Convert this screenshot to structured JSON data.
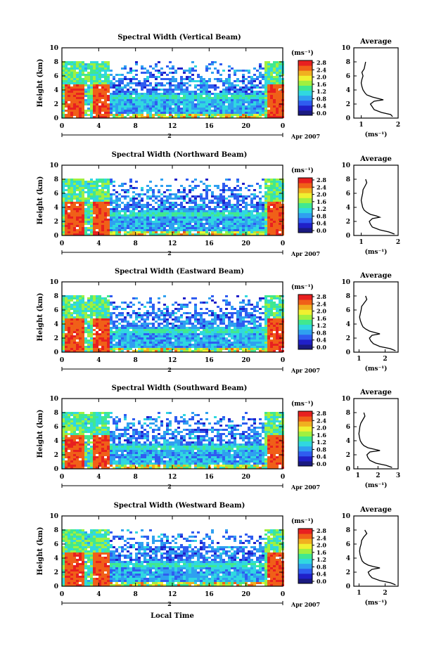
{
  "figure": {
    "xlabel": "Local Time",
    "date_label": "Apr 2007",
    "day_label": "2",
    "colorbar_unit": "(ms⁻¹)",
    "colorbar_ticks": [
      "0.0",
      "0.4",
      "0.8",
      "1.2",
      "1.6",
      "2.0",
      "2.4",
      "2.8"
    ],
    "colorscale": [
      "#1a1a80",
      "#2020c8",
      "#2f5cf0",
      "#2fa0f0",
      "#30d8e0",
      "#40e890",
      "#a0f040",
      "#f0f030",
      "#f0b020",
      "#f06018",
      "#e82020"
    ],
    "avg_title": "Average",
    "avg_xlabel": "(ms⁻¹)"
  },
  "chart_data": [
    {
      "type": "heatmap",
      "title": "Spectral Width (Vertical Beam)",
      "ylabel": "Height (km)",
      "x_ticks": [
        "0",
        "4",
        "8",
        "12",
        "16",
        "20",
        "0"
      ],
      "y_ticks": [
        "0",
        "2",
        "4",
        "6",
        "8",
        "10"
      ],
      "xlim": [
        0,
        24
      ],
      "ylim": [
        0,
        10
      ],
      "average_profile": {
        "x_ticks": [
          "1",
          "2"
        ],
        "xlim": [
          0.8,
          2.0
        ],
        "ylim": [
          0,
          10
        ],
        "height_km": [
          0.2,
          0.5,
          0.8,
          1.2,
          1.6,
          2.0,
          2.4,
          2.6,
          2.8,
          3.0,
          3.3,
          3.6,
          4.0,
          4.5,
          5.0,
          5.5,
          6.0,
          6.5,
          7.0,
          7.5,
          8.0
        ],
        "value": [
          1.85,
          1.8,
          1.55,
          1.35,
          1.3,
          1.25,
          1.35,
          1.6,
          1.45,
          1.3,
          1.15,
          1.1,
          1.05,
          1.02,
          1.0,
          1.02,
          1.05,
          1.02,
          1.08,
          1.1,
          1.12
        ]
      }
    },
    {
      "type": "heatmap",
      "title": "Spectral Width (Northward Beam)",
      "ylabel": "Height (km)",
      "x_ticks": [
        "0",
        "4",
        "8",
        "12",
        "16",
        "20",
        "0"
      ],
      "y_ticks": [
        "0",
        "2",
        "4",
        "6",
        "8",
        "10"
      ],
      "xlim": [
        0,
        24
      ],
      "ylim": [
        0,
        10
      ],
      "average_profile": {
        "x_ticks": [
          "1",
          "2"
        ],
        "xlim": [
          0.8,
          2.0
        ],
        "ylim": [
          0,
          10
        ],
        "height_km": [
          0.2,
          0.5,
          0.8,
          1.2,
          1.6,
          2.0,
          2.4,
          2.6,
          2.8,
          3.0,
          3.3,
          3.6,
          4.0,
          4.5,
          5.0,
          5.5,
          6.0,
          6.5,
          7.0,
          7.5,
          8.0
        ],
        "value": [
          1.9,
          1.75,
          1.5,
          1.3,
          1.25,
          1.22,
          1.3,
          1.5,
          1.4,
          1.25,
          1.15,
          1.08,
          1.04,
          1.02,
          1.0,
          1.02,
          1.04,
          1.05,
          1.1,
          1.15,
          1.12
        ]
      }
    },
    {
      "type": "heatmap",
      "title": "Spectral Width (Eastward Beam)",
      "ylabel": "Height (km)",
      "x_ticks": [
        "0",
        "4",
        "8",
        "12",
        "16",
        "20",
        "0"
      ],
      "y_ticks": [
        "0",
        "2",
        "4",
        "6",
        "8",
        "10"
      ],
      "xlim": [
        0,
        24
      ],
      "ylim": [
        0,
        10
      ],
      "average_profile": {
        "x_ticks": [
          "1",
          "2"
        ],
        "xlim": [
          0.8,
          2.5
        ],
        "ylim": [
          0,
          10
        ],
        "height_km": [
          0.2,
          0.5,
          0.8,
          1.2,
          1.6,
          2.0,
          2.4,
          2.6,
          2.8,
          3.0,
          3.3,
          3.6,
          4.0,
          4.5,
          5.0,
          5.5,
          6.0,
          6.5,
          7.0,
          7.5,
          8.0
        ],
        "value": [
          2.4,
          2.2,
          1.8,
          1.55,
          1.45,
          1.4,
          1.5,
          1.8,
          1.6,
          1.4,
          1.25,
          1.15,
          1.1,
          1.05,
          1.02,
          1.05,
          1.08,
          1.1,
          1.2,
          1.3,
          1.25
        ]
      }
    },
    {
      "type": "heatmap",
      "title": "Spectral Width (Southward Beam)",
      "ylabel": "Height (km)",
      "x_ticks": [
        "0",
        "4",
        "8",
        "12",
        "16",
        "20",
        "0"
      ],
      "y_ticks": [
        "0",
        "2",
        "4",
        "6",
        "8",
        "10"
      ],
      "xlim": [
        0,
        24
      ],
      "ylim": [
        0,
        10
      ],
      "average_profile": {
        "x_ticks": [
          "1",
          "2",
          "3"
        ],
        "xlim": [
          0.8,
          3.0
        ],
        "ylim": [
          0,
          10
        ],
        "height_km": [
          0.2,
          0.5,
          0.8,
          1.2,
          1.6,
          2.0,
          2.4,
          2.6,
          2.8,
          3.0,
          3.3,
          3.6,
          4.0,
          4.5,
          5.0,
          5.5,
          6.0,
          6.5,
          7.0,
          7.5,
          8.0
        ],
        "value": [
          2.7,
          2.4,
          1.9,
          1.6,
          1.5,
          1.45,
          1.6,
          2.1,
          1.8,
          1.5,
          1.3,
          1.2,
          1.12,
          1.08,
          1.05,
          1.08,
          1.1,
          1.15,
          1.25,
          1.35,
          1.3
        ]
      }
    },
    {
      "type": "heatmap",
      "title": "Spectral Width (Westward Beam)",
      "ylabel": "Height (km)",
      "x_ticks": [
        "0",
        "4",
        "8",
        "12",
        "16",
        "20",
        "0"
      ],
      "y_ticks": [
        "0",
        "2",
        "4",
        "6",
        "8",
        "10"
      ],
      "xlim": [
        0,
        24
      ],
      "ylim": [
        0,
        10
      ],
      "average_profile": {
        "x_ticks": [
          "1",
          "2"
        ],
        "xlim": [
          0.8,
          2.5
        ],
        "ylim": [
          0,
          10
        ],
        "height_km": [
          0.2,
          0.5,
          0.8,
          1.2,
          1.6,
          2.0,
          2.4,
          2.6,
          2.8,
          3.0,
          3.3,
          3.6,
          4.0,
          4.5,
          5.0,
          5.5,
          6.0,
          6.5,
          7.0,
          7.5,
          8.0
        ],
        "value": [
          2.4,
          2.2,
          1.8,
          1.5,
          1.4,
          1.35,
          1.5,
          1.8,
          1.55,
          1.35,
          1.2,
          1.12,
          1.08,
          1.04,
          1.02,
          1.04,
          1.08,
          1.1,
          1.18,
          1.3,
          1.22
        ]
      }
    }
  ]
}
